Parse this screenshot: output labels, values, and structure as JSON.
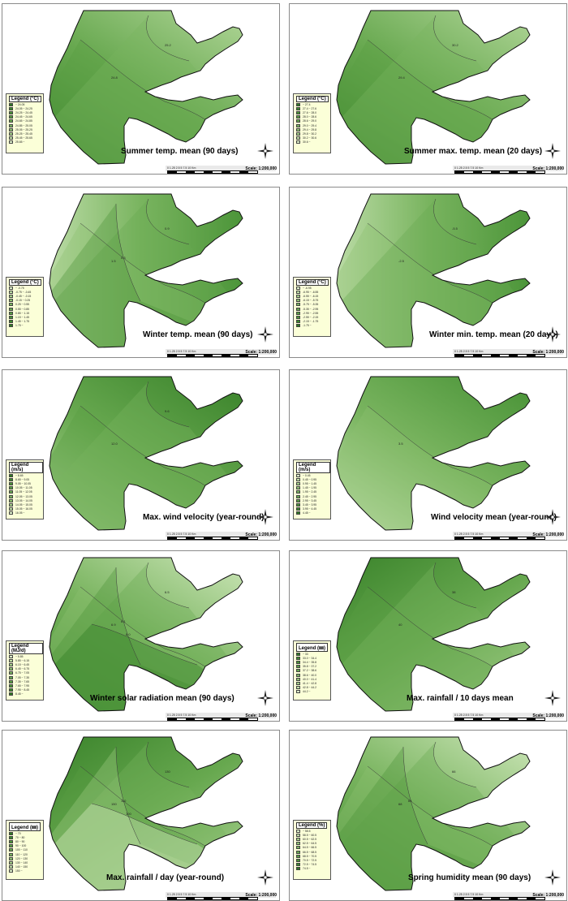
{
  "scale_label": "Scale: 1:200,000",
  "scale_ticks": "0  1.25 2.5      5       7.5      10 Km",
  "panels": [
    {
      "title": "Summer temp. mean (90 days)",
      "legend_title": "Legend (°C)",
      "legend": [
        "~ 24.05",
        "24.05 ~ 24.25",
        "24.25 ~ 24.45",
        "24.45 ~ 24.65",
        "24.65 ~ 24.85",
        "24.85 ~ 25.05",
        "25.05 ~ 25.25",
        "25.25 ~ 25.45",
        "25.45 ~ 25.65",
        "25.65 ~"
      ],
      "palette": "dark-first",
      "contours": [
        "24.8",
        "25.2"
      ]
    },
    {
      "title": "Summer max. temp. mean (20 days)",
      "legend_title": "Legend (°C)",
      "legend": [
        "~ 27.4",
        "27.4 ~ 27.6",
        "27.6 ~ 28.0",
        "28.0 ~ 28.6",
        "28.6 ~ 29.0",
        "29.0 ~ 29.4",
        "29.4 ~ 29.8",
        "29.8 ~ 30.2",
        "30.2 ~ 30.6",
        "30.6 ~"
      ],
      "palette": "dark-first",
      "contours": [
        "29.4",
        "30.2"
      ]
    },
    {
      "title": "Winter temp. mean (90 days)",
      "legend_title": "Legend (°C)",
      "legend": [
        "~ -0.75",
        "-0.75 ~ -0.45",
        "-0.45 ~ -0.15",
        "-0.15 ~ 0.25",
        "0.25 ~ 0.55",
        "0.55 ~ 0.85",
        "0.85 ~ 1.15",
        "1.15 ~ 1.45",
        "1.45 ~ 1.75",
        "1.75 ~"
      ],
      "palette": "light-first",
      "contours": [
        "1.5",
        "0.9",
        "0.3"
      ]
    },
    {
      "title": "Winter min. temp. mean (20 days)",
      "legend_title": "Legend (°C)",
      "legend": [
        "~ -6.95",
        "-6.95 ~ -6.55",
        "-6.55 ~ -6.15",
        "-6.15 ~ -5.75",
        "-5.75 ~ -5.35",
        "-5.35 ~ -2.95",
        "-2.95 ~ -2.55",
        "-2.55 ~ -2.15",
        "-2.15 ~ -1.75",
        "-1.75 ~"
      ],
      "palette": "light-first",
      "contours": [
        "-2.5",
        "-5.5"
      ]
    },
    {
      "title": "Max. wind velocity (year-round)",
      "legend_title": "Legend (m/s)",
      "legend": [
        "~ 8.65",
        "8.65 ~ 9.05",
        "9.05 ~ 10.05",
        "10.05 ~ 11.05",
        "11.05 ~ 12.05",
        "12.05 ~ 13.05",
        "13.05 ~ 14.05",
        "14.05 ~ 15.05",
        "15.05 ~ 16.05",
        "16.05 ~"
      ],
      "palette": "dark-first",
      "contours": [
        "12.0",
        "9.6"
      ]
    },
    {
      "title": "Wind velocity mean (year-round)",
      "legend_title": "Legend (m/s)",
      "legend": [
        "~ 0.45",
        "0.45 ~ 0.95",
        "0.95 ~ 1.45",
        "1.45 ~ 1.95",
        "1.95 ~ 2.45",
        "2.45 ~ 2.95",
        "2.95 ~ 3.45",
        "3.45 ~ 3.95",
        "3.95 ~ 4.45",
        "4.45 ~"
      ],
      "palette": "light-first",
      "contours": [
        "3.5"
      ]
    },
    {
      "title": "Winter solar radiation mean (90 days)",
      "legend_title": "Legend (MJ/d)",
      "legend": [
        "~ 5.85",
        "5.85 ~ 6.15",
        "6.15 ~ 6.45",
        "6.45 ~ 6.75",
        "6.75 ~ 7.05",
        "7.05 ~ 7.35",
        "7.35 ~ 7.65",
        "7.65 ~ 7.95",
        "7.95 ~ 8.45",
        "8.45 ~"
      ],
      "palette": "light-first",
      "contours": [
        "6.9",
        "6.5",
        "6.1",
        "6.0"
      ]
    },
    {
      "title": "Max. rainfall / 10 days mean",
      "legend_title": "Legend (㎜)",
      "legend": [
        "~ 33",
        "33.0 ~ 34.4",
        "34.4 ~ 35.8",
        "35.8 ~ 37.2",
        "37.2 ~ 38.6",
        "38.6 ~ 40.0",
        "40.0 ~ 41.4",
        "41.4 ~ 42.8",
        "42.8 ~ 44.2",
        "44.2 ~"
      ],
      "palette": "dark-first",
      "contours": [
        "40",
        "38"
      ]
    },
    {
      "title": "Max. rainfall / day (year-round)",
      "legend_title": "Legend (㎜)",
      "legend": [
        "~ 70",
        "70 ~ 80",
        "80 ~ 90",
        "90 ~ 100",
        "100 ~ 110",
        "110 ~ 120",
        "120 ~ 130",
        "130 ~ 140",
        "140 ~ 150",
        "150 ~"
      ],
      "palette": "dark-first",
      "contours": [
        "150",
        "130",
        "110",
        "100"
      ]
    },
    {
      "title": "Spring humidity mean (90 days)",
      "legend_title": "Legend (%)",
      "legend": [
        "~ 58.5",
        "58.5 ~ 60.5",
        "60.5 ~ 62.5",
        "62.5 ~ 64.5",
        "64.5 ~ 66.5",
        "66.5 ~ 68.5",
        "68.5 ~ 70.5",
        "70.5 ~ 72.5",
        "72.5 ~ 74.5",
        "74.5 ~"
      ],
      "palette": "light-first",
      "contours": [
        "68",
        "66",
        "64"
      ]
    }
  ]
}
